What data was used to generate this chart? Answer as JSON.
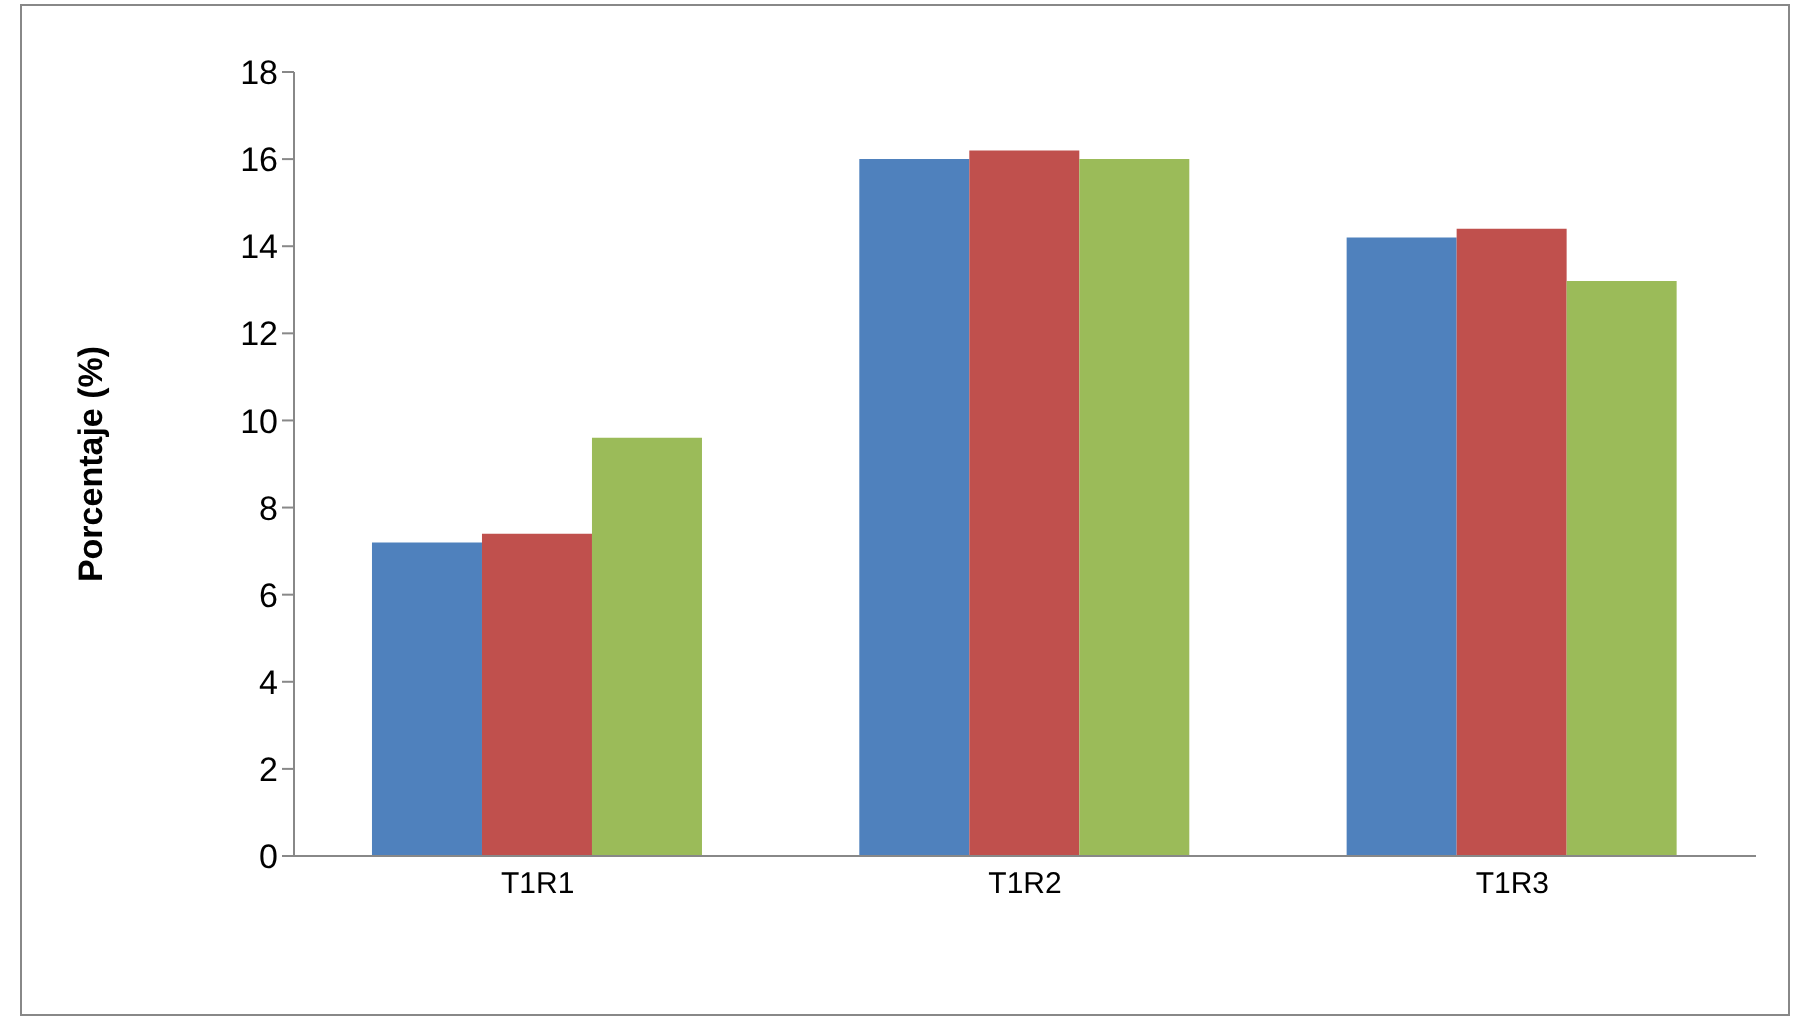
{
  "chart_data": {
    "type": "bar",
    "ylabel": "Porcentaje (%)",
    "categories": [
      "T1R1",
      "T1R2",
      "T1R3"
    ],
    "series": [
      {
        "color": "#4f81bd",
        "values": [
          7.2,
          16.0,
          14.2
        ]
      },
      {
        "color": "#c0504d",
        "values": [
          7.4,
          16.2,
          14.4
        ]
      },
      {
        "color": "#9bbb59",
        "values": [
          9.6,
          16.0,
          13.2
        ]
      }
    ],
    "ylim": [
      0,
      18
    ],
    "yticks": [
      0,
      2,
      4,
      6,
      8,
      10,
      12,
      14,
      16,
      18
    ],
    "grid": false,
    "legend": false
  }
}
